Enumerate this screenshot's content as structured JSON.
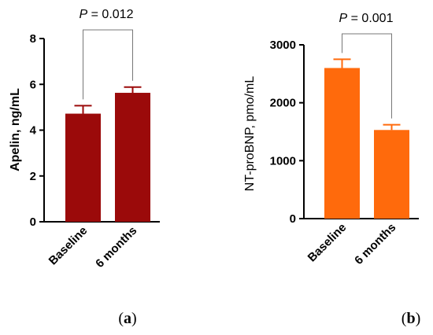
{
  "chart_data": [
    {
      "type": "bar",
      "panel_label": {
        "open": "(",
        "letter": "a",
        "close": ")"
      },
      "categories": [
        "Baseline",
        "6 months"
      ],
      "values": [
        4.72,
        5.63
      ],
      "errors": [
        0.35,
        0.25
      ],
      "ylabel": "Apelin, ng/mL",
      "ylim": [
        0,
        8
      ],
      "yticks": [
        0,
        2,
        4,
        6,
        8
      ],
      "bar_color": "#9b0a0a",
      "annotation": {
        "italic": "P",
        "rest": " = 0.012"
      }
    },
    {
      "type": "bar",
      "panel_label": {
        "open": "(",
        "letter": "b",
        "close": ")"
      },
      "categories": [
        "Baseline",
        "6 months"
      ],
      "values": [
        2600,
        1530
      ],
      "errors": [
        150,
        90
      ],
      "ylabel": "NT-proBNP, pmo/mL",
      "ylim": [
        0,
        3000
      ],
      "yticks": [
        0,
        1000,
        2000,
        3000
      ],
      "bar_color": "#ff6a0c",
      "annotation": {
        "italic": "P",
        "rest": " = 0.001"
      }
    }
  ]
}
